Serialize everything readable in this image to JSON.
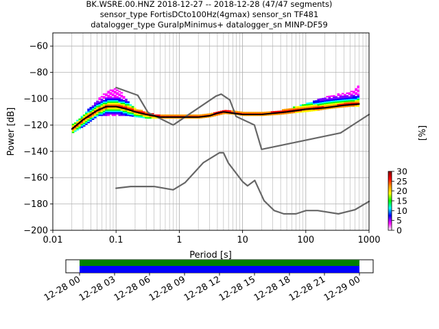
{
  "title_lines": [
    "BK.WSRE.00.HNZ   2018-12-27 -- 2018-12-28  (47/47 segments)",
    "sensor_type FortisDCto100Hz(4gmax) sensor_sn TF481",
    "datalogger_type GuralpMinimus+ datalogger_sn MINP-DF59"
  ],
  "chart_data": {
    "type": "heatmap",
    "xlabel": "Period [s]",
    "ylabel": "Power [dB]",
    "xscale": "log",
    "xlim": [
      0.01,
      1000
    ],
    "ylim": [
      -200,
      -50
    ],
    "xticks": [
      0.01,
      0.1,
      1,
      10,
      100,
      1000
    ],
    "xtick_labels": [
      "0.01",
      "0.1",
      "1",
      "10",
      "100",
      "1000"
    ],
    "yticks": [
      -200,
      -180,
      -160,
      -140,
      -120,
      -100,
      -80,
      -60
    ],
    "grid": true,
    "colorbar": {
      "label": "[%]",
      "range": [
        0,
        30
      ],
      "ticks": [
        0,
        5,
        10,
        15,
        20,
        25,
        30
      ],
      "colors": [
        "#ffffff",
        "#ff00ff",
        "#0000ff",
        "#00ffff",
        "#00ff00",
        "#ffff00",
        "#ff9900",
        "#ff0000",
        "#880000"
      ]
    },
    "series": [
      {
        "name": "",
        "style": "median",
        "color": "#000000",
        "x": [
          0.02,
          0.03,
          0.05,
          0.07,
          0.1,
          0.15,
          0.2,
          0.3,
          0.5,
          0.8,
          1,
          2,
          3,
          4,
          5,
          7,
          10,
          20,
          50,
          100,
          200,
          400,
          700
        ],
        "y": [
          -123,
          -116,
          -109,
          -106,
          -106,
          -108,
          -110,
          -112,
          -114,
          -114,
          -114,
          -114,
          -113,
          -111,
          -110,
          -111,
          -112,
          -112,
          -110,
          -108,
          -107,
          -105,
          -104
        ]
      },
      {
        "name": "",
        "style": "noise model (upper)",
        "color": "#666666",
        "x": [
          0.1,
          0.22,
          0.32,
          0.8,
          3.8,
          4.6,
          6.3,
          7.9,
          15.4,
          20,
          354.8,
          1000
        ],
        "y": [
          -91.5,
          -97.4,
          -110.5,
          -120,
          -98,
          -96.5,
          -101,
          -113.5,
          -120,
          -138.5,
          -126,
          -112
        ]
      },
      {
        "name": "",
        "style": "noise model (lower)",
        "color": "#666666",
        "x": [
          0.1,
          0.17,
          0.4,
          0.8,
          1.24,
          2.4,
          4.3,
          5,
          6,
          10,
          12,
          15.6,
          21.9,
          31.6,
          45,
          70,
          101,
          154,
          328,
          600,
          1000
        ],
        "y": [
          -168,
          -166.7,
          -166.7,
          -169.2,
          -163.7,
          -148.6,
          -141.1,
          -141.1,
          -149,
          -163,
          -166.2,
          -162.1,
          -177.5,
          -185,
          -187.5,
          -187.5,
          -185,
          -185,
          -187.5,
          -184.4,
          -178
        ]
      }
    ],
    "density_bands": [
      {
        "x": [
          0.02,
          0.03,
          0.05,
          0.07,
          0.09,
          0.12,
          0.15,
          0.2,
          0.3,
          0.5,
          1,
          2,
          3,
          5,
          7,
          10,
          20,
          40,
          60,
          100,
          150,
          200,
          300,
          500,
          700
        ],
        "y_low": [
          -126,
          -121,
          -113,
          -113,
          -113,
          -113,
          -113,
          -114,
          -115,
          -115,
          -115,
          -115,
          -114,
          -111.5,
          -112,
          -113,
          -113,
          -112,
          -111,
          -110,
          -109,
          -108,
          -107,
          -106,
          -106
        ],
        "y_high": [
          -120,
          -112,
          -100,
          -95,
          -92,
          -96,
          -103,
          -108,
          -111,
          -113,
          -113,
          -113,
          -112,
          -109.5,
          -110,
          -111,
          -111,
          -109,
          -107,
          -104,
          -101,
          -99,
          -97,
          -95,
          -88
        ]
      }
    ]
  },
  "timeline": {
    "tick_labels": [
      "12-28 00",
      "12-28 03",
      "12-28 06",
      "12-28 09",
      "12-28 12",
      "12-28 15",
      "12-28 18",
      "12-28 21",
      "12-29 00"
    ],
    "coverage_color_top": "#008000",
    "coverage_color_bottom": "#0000ff",
    "coverage": [
      0.0,
      1.0
    ]
  }
}
